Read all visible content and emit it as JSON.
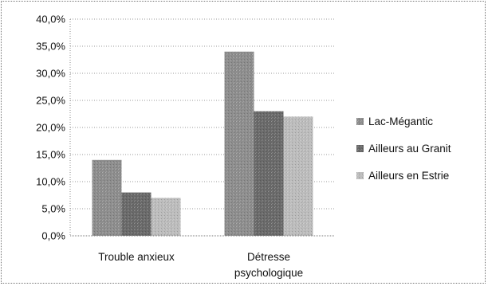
{
  "chart_data": {
    "type": "bar",
    "categories": [
      "Trouble anxieux",
      "Détresse psychologique"
    ],
    "category_lines": [
      [
        "Trouble anxieux"
      ],
      [
        "Détresse",
        "psychologique"
      ]
    ],
    "series": [
      {
        "name": "Lac-Mégantic",
        "values": [
          14.0,
          34.0
        ],
        "color": "#8e8e8e"
      },
      {
        "name": "Ailleurs au Granit",
        "values": [
          8.0,
          23.0
        ],
        "color": "#6a6a6a"
      },
      {
        "name": "Ailleurs en Estrie",
        "values": [
          7.0,
          22.0
        ],
        "color": "#bdbdbd"
      }
    ],
    "ylim": [
      0,
      40
    ],
    "yticks": [
      0,
      5,
      10,
      15,
      20,
      25,
      30,
      35,
      40
    ],
    "ytick_labels": [
      "0,0%",
      "5,0%",
      "10,0%",
      "15,0%",
      "20,0%",
      "25,0%",
      "30,0%",
      "35,0%",
      "40,0%"
    ],
    "title": "",
    "xlabel": "",
    "ylabel": "",
    "grid": true,
    "legend_position": "right"
  }
}
